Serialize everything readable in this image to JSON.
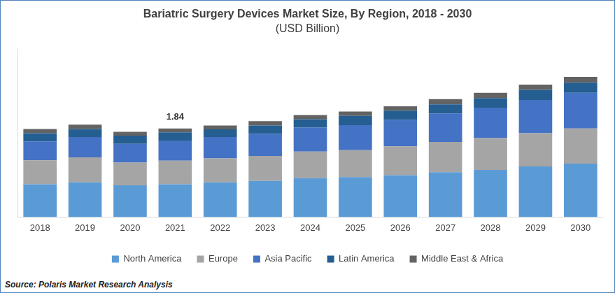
{
  "chart_data": {
    "type": "bar",
    "title": "Bariatric Surgery Devices Market Size, By Region, 2018 - 2030",
    "subtitle": "(USD Billion)",
    "source": "Source: Polaris Market Research Analysis",
    "categories": [
      "2018",
      "2019",
      "2020",
      "2021",
      "2022",
      "2023",
      "2024",
      "2025",
      "2026",
      "2027",
      "2028",
      "2029",
      "2030"
    ],
    "series": [
      {
        "name": "North America",
        "color": "#5b9bd5",
        "values": [
          0.68,
          0.72,
          0.66,
          0.68,
          0.72,
          0.75,
          0.81,
          0.83,
          0.87,
          0.93,
          0.98,
          1.05,
          1.11
        ]
      },
      {
        "name": "Europe",
        "color": "#a5a5a5",
        "values": [
          0.5,
          0.52,
          0.47,
          0.49,
          0.5,
          0.52,
          0.55,
          0.56,
          0.6,
          0.63,
          0.66,
          0.69,
          0.73
        ]
      },
      {
        "name": "Asia Pacific",
        "color": "#4472c4",
        "values": [
          0.39,
          0.42,
          0.39,
          0.42,
          0.44,
          0.46,
          0.5,
          0.52,
          0.55,
          0.59,
          0.63,
          0.69,
          0.74
        ]
      },
      {
        "name": "Latin America",
        "color": "#255e91",
        "values": [
          0.17,
          0.17,
          0.17,
          0.17,
          0.16,
          0.17,
          0.17,
          0.19,
          0.19,
          0.19,
          0.2,
          0.21,
          0.21
        ]
      },
      {
        "name": "Middle East & Africa",
        "color": "#636363",
        "values": [
          0.09,
          0.09,
          0.08,
          0.08,
          0.08,
          0.09,
          0.09,
          0.09,
          0.09,
          0.11,
          0.11,
          0.11,
          0.12
        ]
      }
    ],
    "annotations": [
      {
        "text": "1.84",
        "x": "2021",
        "y": 1.84
      }
    ],
    "ylim": [
      0,
      3.5
    ],
    "stacked": true,
    "grid": false,
    "legend": "bottom",
    "tick_labels": "x"
  }
}
